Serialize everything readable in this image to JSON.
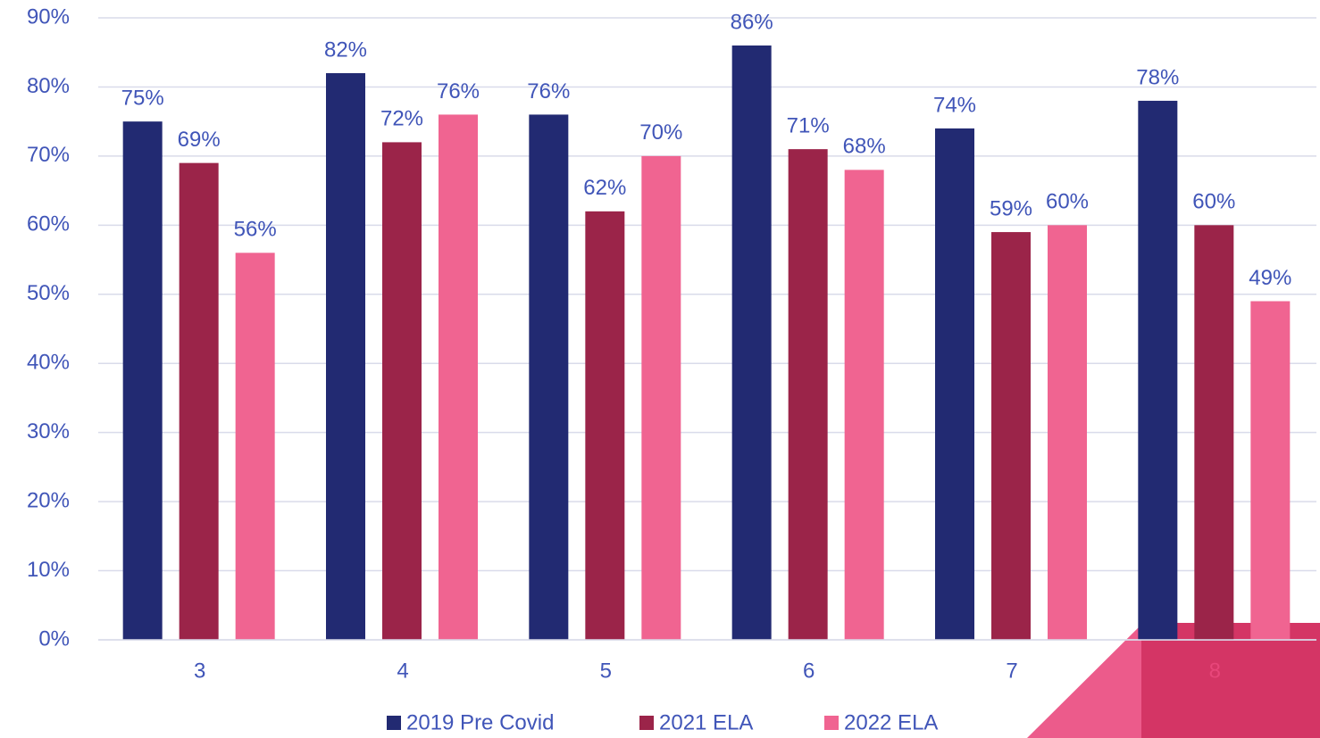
{
  "chart_data": {
    "type": "bar",
    "categories": [
      "3",
      "4",
      "5",
      "6",
      "7",
      "8"
    ],
    "series": [
      {
        "name": "2019 Pre Covid",
        "color": "#222a72",
        "values": [
          75,
          82,
          76,
          86,
          74,
          78
        ],
        "value_labels": [
          "75%",
          "82%",
          "76%",
          "86%",
          "74%",
          "78%"
        ]
      },
      {
        "name": "2021 ELA",
        "color": "#9b2449",
        "values": [
          69,
          72,
          62,
          71,
          59,
          60
        ],
        "value_labels": [
          "69%",
          "72%",
          "62%",
          "71%",
          "59%",
          "60%"
        ]
      },
      {
        "name": "2022 ELA",
        "color": "#f06491",
        "values": [
          56,
          76,
          70,
          68,
          60,
          49
        ],
        "value_labels": [
          "56%",
          "76%",
          "70%",
          "68%",
          "60%",
          "49%"
        ]
      }
    ],
    "ylim": [
      0,
      90
    ],
    "yticks": [
      {
        "value": 0,
        "label": "0%"
      },
      {
        "value": 10,
        "label": "10%"
      },
      {
        "value": 20,
        "label": "20%"
      },
      {
        "value": 30,
        "label": "30%"
      },
      {
        "value": 40,
        "label": "40%"
      },
      {
        "value": 50,
        "label": "50%"
      },
      {
        "value": 60,
        "label": "60%"
      },
      {
        "value": 70,
        "label": "70%"
      },
      {
        "value": 80,
        "label": "80%"
      },
      {
        "value": 90,
        "label": "90%"
      }
    ],
    "grid": true,
    "legend": "bottom"
  }
}
